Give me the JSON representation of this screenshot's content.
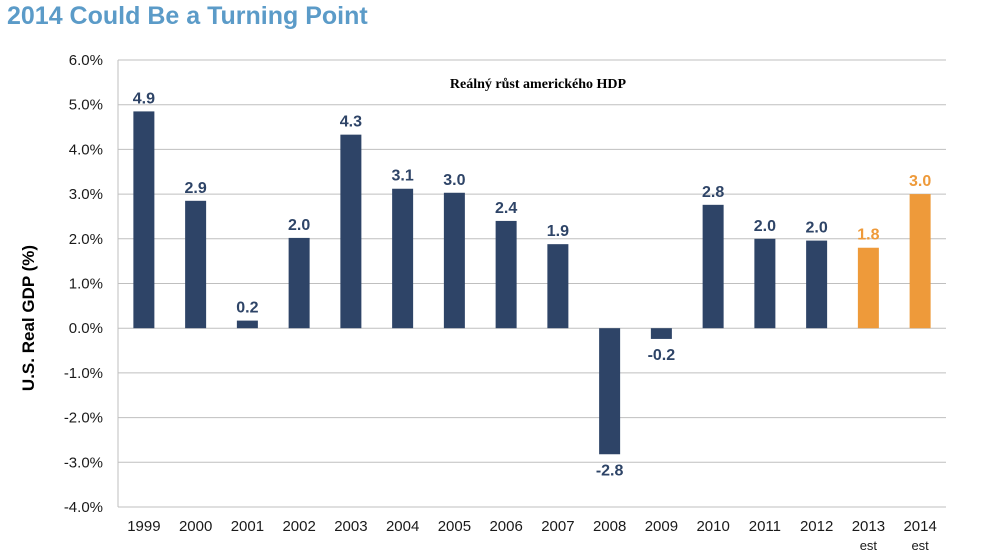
{
  "page_title": "2014 Could Be a Turning Point",
  "colors": {
    "title": "#5b9bc8",
    "actual": "#2e4467",
    "estimate": "#ee9a3a",
    "grid": "#bfbfbf"
  },
  "chart_data": {
    "type": "bar",
    "title": "Reálný růst amerického HDP",
    "xlabel": "",
    "ylabel": "U.S. Real GDP (%)",
    "ylim": [
      -4.0,
      6.0
    ],
    "ytick_values": [
      6,
      5,
      4,
      3,
      2,
      1,
      0,
      -1,
      -2,
      -3,
      -4
    ],
    "ytick_labels": [
      "6.0%",
      "5.0%",
      "4.0%",
      "3.0%",
      "2.0%",
      "1.0%",
      "0.0%",
      "-1.0%",
      "-2.0%",
      "-3.0%",
      "-4.0%"
    ],
    "grid": true,
    "categories": [
      "1999",
      "2000",
      "2001",
      "2002",
      "2003",
      "2004",
      "2005",
      "2006",
      "2007",
      "2008",
      "2009",
      "2010",
      "2011",
      "2012",
      "2013",
      "2014"
    ],
    "category_sublabels": [
      "",
      "",
      "",
      "",
      "",
      "",
      "",
      "",
      "",
      "",
      "",
      "",
      "",
      "",
      "est",
      "est"
    ],
    "values": [
      4.85,
      2.85,
      0.17,
      2.02,
      4.33,
      3.12,
      3.03,
      2.4,
      1.88,
      -2.82,
      -0.24,
      2.76,
      2.0,
      1.96,
      1.8,
      3.0
    ],
    "data_labels": [
      "4.9",
      "2.9",
      "0.2",
      "2.0",
      "4.3",
      "3.1",
      "3.0",
      "2.4",
      "1.9",
      "-2.8",
      "-0.2",
      "2.8",
      "2.0",
      "2.0",
      "1.8",
      "3.0"
    ],
    "estimate_flags": [
      false,
      false,
      false,
      false,
      false,
      false,
      false,
      false,
      false,
      false,
      false,
      false,
      false,
      false,
      true,
      true
    ]
  }
}
